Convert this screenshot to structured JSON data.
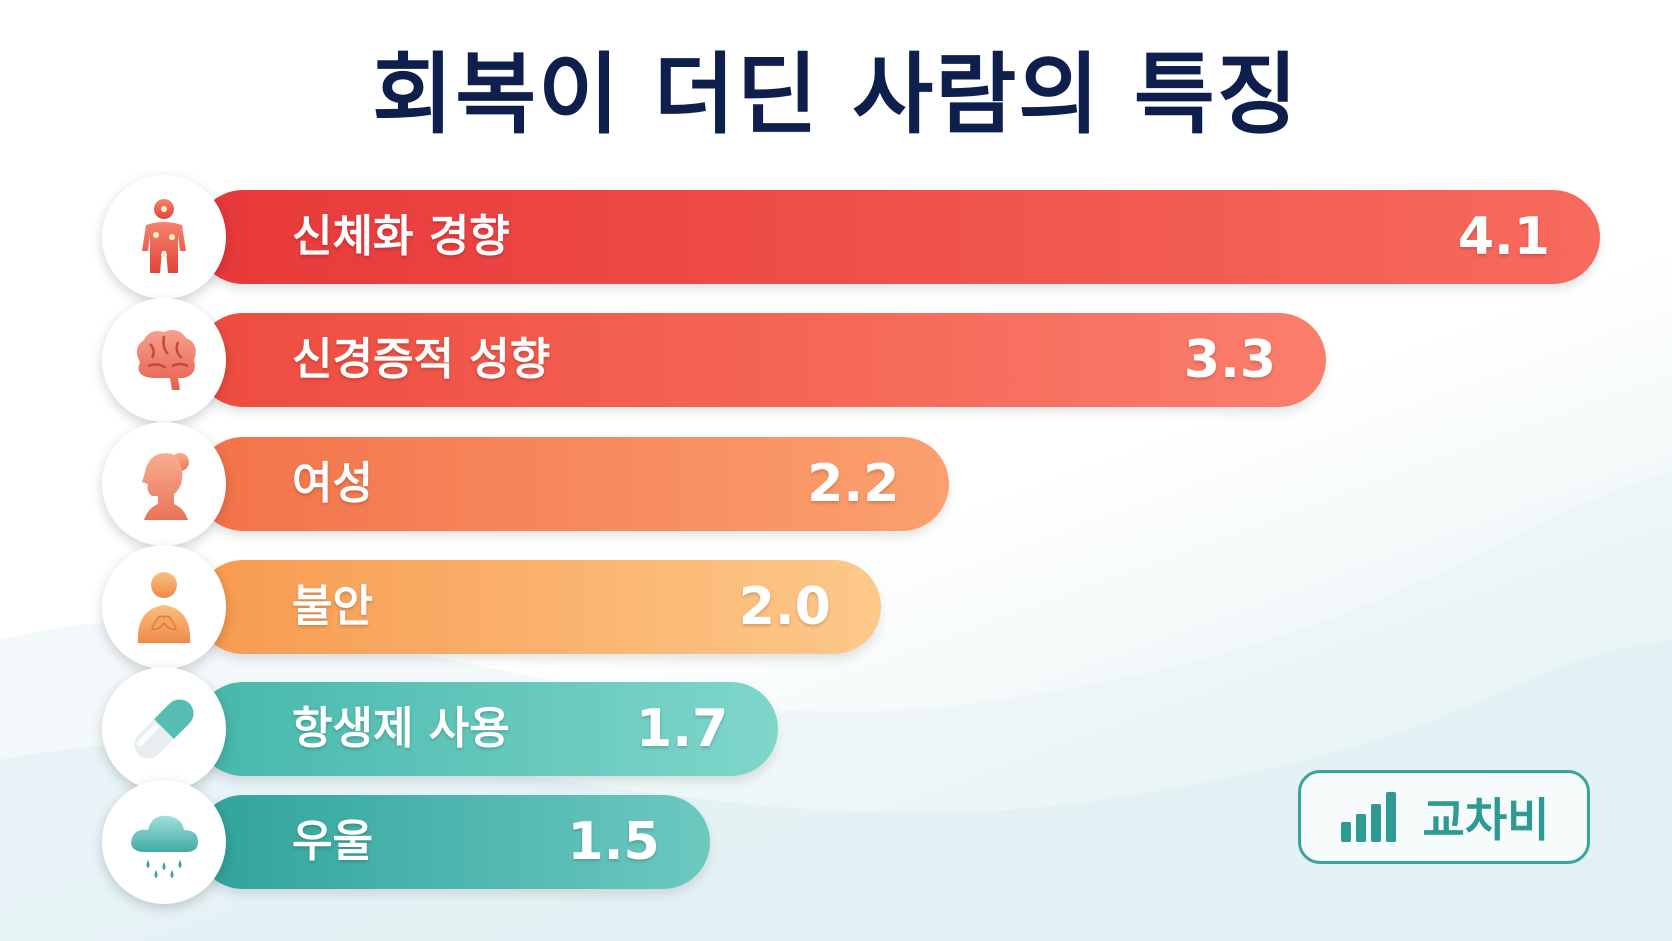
{
  "title": "회복이 더딘 사람의 특징",
  "brand": {
    "label": "교차비",
    "icon": "bar-chart-icon",
    "color": "#2f9a92"
  },
  "chart_data": {
    "type": "bar",
    "orientation": "horizontal",
    "title": "회복이 더딘 사람의 특징",
    "categories": [
      "신체화 경향",
      "신경증적 성향",
      "여성",
      "불안",
      "항생제 사용",
      "우울"
    ],
    "values": [
      4.1,
      3.3,
      2.2,
      2.0,
      1.7,
      1.5
    ],
    "value_labels": [
      "4.1",
      "3.3",
      "2.2",
      "2.0",
      "1.7",
      "1.5"
    ],
    "icons": [
      "body-pain-icon",
      "brain-icon",
      "woman-head-icon",
      "anxious-person-icon",
      "pill-capsule-icon",
      "rain-cloud-icon"
    ],
    "colors": [
      [
        "#e8383a",
        "#f76a5e"
      ],
      [
        "#ee4b3f",
        "#fb7e6b"
      ],
      [
        "#f3724a",
        "#fba06e"
      ],
      [
        "#f79a4f",
        "#fdc98a"
      ],
      [
        "#46b7ab",
        "#7fd6cb"
      ],
      [
        "#2fa39c",
        "#6cc9c0"
      ]
    ],
    "grid": false,
    "legend": "none"
  }
}
